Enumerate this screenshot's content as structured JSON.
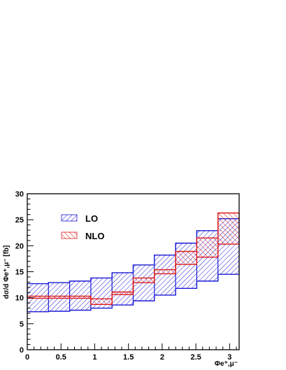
{
  "chart_data": {
    "type": "area",
    "xlim": [
      0,
      3.1416
    ],
    "ylim": [
      0,
      30
    ],
    "xticks": [
      "0",
      "0.5",
      "1",
      "1.5",
      "2",
      "2.5",
      "3"
    ],
    "yticks": [
      "0",
      "5",
      "10",
      "15",
      "20",
      "25",
      "30"
    ],
    "xlabel": "Φe⁺,μ⁻",
    "ylabel": "dσ/d Φe⁺,μ⁻  [fb]",
    "legend_position": "top-left",
    "bin_edges": [
      0,
      0.3142,
      0.6283,
      0.9425,
      1.2566,
      1.5708,
      1.885,
      2.1991,
      2.5133,
      2.8274,
      3.1416
    ],
    "series": [
      {
        "name": "LO",
        "color": "#1a1ad6",
        "lower": [
          7.3,
          7.4,
          7.6,
          8.0,
          8.6,
          9.4,
          10.5,
          11.8,
          13.2,
          14.5
        ],
        "upper": [
          12.7,
          12.9,
          13.2,
          13.8,
          14.8,
          16.3,
          18.2,
          20.5,
          22.9,
          25.2
        ]
      },
      {
        "name": "NLO",
        "color": "#e01a1a",
        "lower": [
          9.9,
          9.9,
          9.9,
          8.7,
          10.6,
          12.9,
          14.6,
          16.4,
          17.8,
          20.3
        ],
        "upper": [
          10.3,
          10.3,
          10.3,
          9.8,
          11.1,
          13.8,
          15.4,
          18.9,
          21.5,
          26.3
        ]
      }
    ]
  }
}
